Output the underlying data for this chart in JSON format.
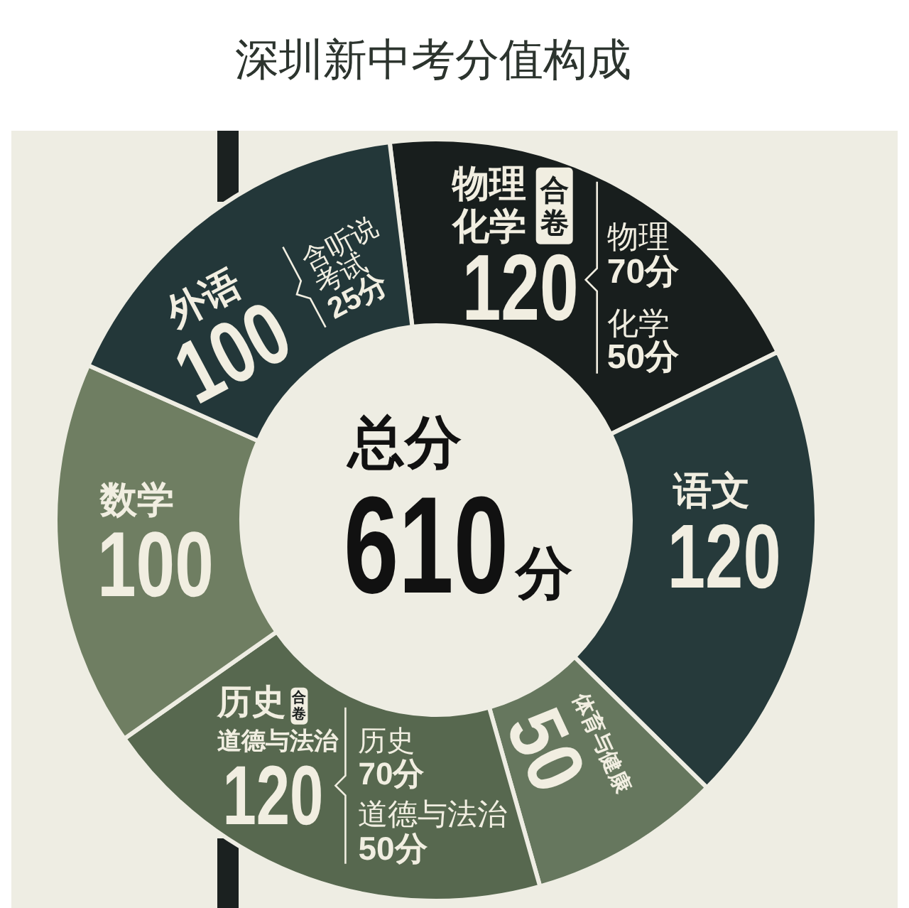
{
  "chart_data": {
    "type": "donut",
    "title": "深圳新中考分值构成",
    "categories": [
      "物理化学",
      "语文",
      "体育与健康",
      "历史道德与法治",
      "数学",
      "外语"
    ],
    "values": [
      120,
      120,
      50,
      120,
      100,
      100
    ],
    "colors": [
      "#181e1d",
      "#263a3b",
      "#66775e",
      "#57684f",
      "#6f7e62",
      "#233739"
    ],
    "data_labels": true,
    "annotations": [
      "合卷",
      "物理\n70分",
      "化学\n50分",
      "合卷",
      "历史\n70分",
      "道德与法治\n50分",
      "含听说\n考试\n25分",
      "总分",
      "610分"
    ]
  }
}
